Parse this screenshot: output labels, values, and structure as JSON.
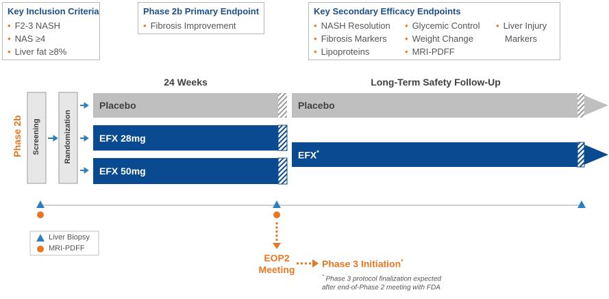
{
  "inclusion": {
    "title": "Key Inclusion Criteria",
    "items": [
      "F2-3 NASH",
      "NAS ≥4",
      "Liver fat ≥8%"
    ]
  },
  "primary": {
    "title": "Phase 2b Primary Endpoint",
    "items": [
      "Fibrosis Improvement"
    ]
  },
  "secondary": {
    "title": "Key Secondary Efficacy Endpoints",
    "col1": [
      "NASH Resolution",
      "Fibrosis Markers",
      "Lipoproteins"
    ],
    "col2": [
      "Glycemic Control",
      "Weight Change",
      "MRI-PDFF"
    ],
    "col3_line1": "Liver Injury",
    "col3_line2": "Markers"
  },
  "phase_label": "Phase 2b",
  "screening_label": "Screening",
  "randomization_label": "Randomization",
  "period1_header": "24 Weeks",
  "period2_header": "Long-Term Safety Follow-Up",
  "arms": {
    "placebo": "Placebo",
    "efx28": "EFX 28mg",
    "efx50": "EFX 50mg",
    "placebo_followup": "Placebo",
    "efx_followup": "EFX",
    "efx_followup_sup": "*"
  },
  "legend": {
    "biopsy": "Liver Biopsy",
    "mri": "MRI-PDFF"
  },
  "eop2_line1": "EOP2",
  "eop2_line2": "Meeting",
  "phase3": {
    "label": "Phase 3 Initiation",
    "sup": "*"
  },
  "footnote": {
    "star": "*",
    "line1": "Phase 3 protocol finalization expected",
    "line2": "after end-of-Phase 2 meeting with FDA"
  },
  "colors": {
    "navy": "#0a4a91",
    "gray": "#bfbfbf",
    "orange": "#e87722",
    "blue_marker": "#2a7fc1",
    "title_blue": "#1f4e8c"
  }
}
